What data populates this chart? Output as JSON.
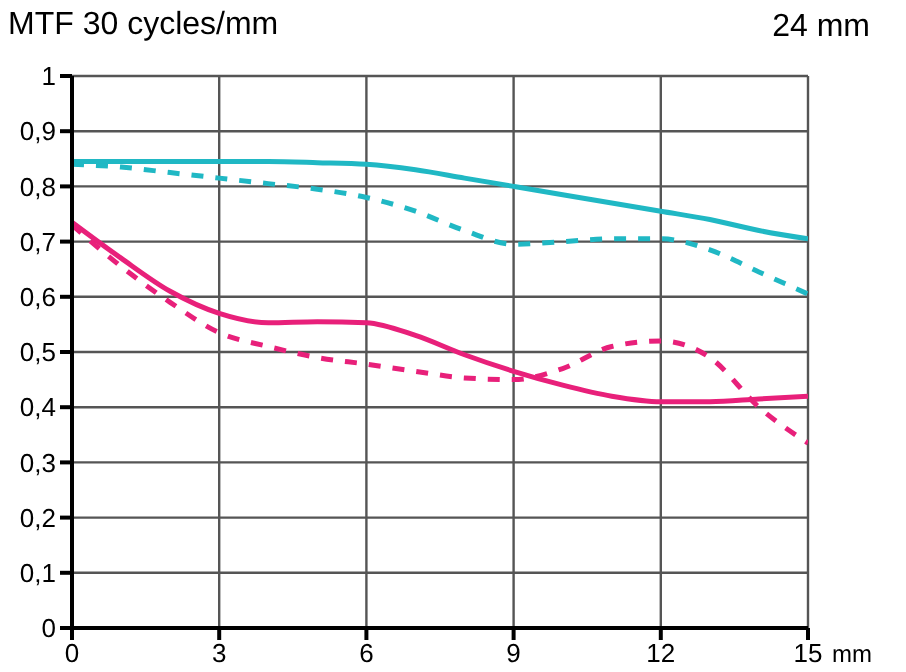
{
  "chart_data": {
    "type": "line",
    "title": "MTF 30 cycles/mm",
    "subtitle": "24 mm",
    "xlabel": "mm",
    "x": [
      0,
      1,
      2,
      3,
      4,
      5,
      6,
      7,
      8,
      9,
      10,
      11,
      12,
      13,
      14,
      15
    ],
    "series": [
      {
        "color": "#20b8c4",
        "line_style": "solid",
        "values": [
          0.845,
          0.845,
          0.845,
          0.845,
          0.845,
          0.843,
          0.84,
          0.83,
          0.815,
          0.8,
          0.785,
          0.77,
          0.755,
          0.74,
          0.72,
          0.705
        ]
      },
      {
        "color": "#20b8c4",
        "line_style": "dashed",
        "values": [
          0.84,
          0.835,
          0.825,
          0.815,
          0.805,
          0.795,
          0.78,
          0.755,
          0.72,
          0.695,
          0.7,
          0.705,
          0.705,
          0.685,
          0.645,
          0.605
        ]
      },
      {
        "color": "#e8207a",
        "line_style": "solid",
        "values": [
          0.735,
          0.67,
          0.61,
          0.57,
          0.553,
          0.555,
          0.553,
          0.53,
          0.495,
          0.465,
          0.44,
          0.42,
          0.41,
          0.41,
          0.415,
          0.42
        ]
      },
      {
        "color": "#e8207a",
        "line_style": "dashed",
        "values": [
          0.73,
          0.655,
          0.59,
          0.535,
          0.51,
          0.49,
          0.478,
          0.465,
          0.453,
          0.45,
          0.47,
          0.51,
          0.52,
          0.49,
          0.4,
          0.335
        ]
      }
    ],
    "xlim": [
      0,
      15
    ],
    "xticks": [
      0,
      3,
      6,
      9,
      12,
      15
    ],
    "ylim": [
      0,
      1
    ],
    "yticks": [
      0,
      {
        "value": 0.1,
        "label": "0,1"
      },
      {
        "value": 0.2,
        "label": "0,2"
      },
      {
        "value": 0.3,
        "label": "0,3"
      },
      {
        "value": 0.4,
        "label": "0,4"
      },
      {
        "value": 0.5,
        "label": "0,5"
      },
      {
        "value": 0.6,
        "label": "0,6"
      },
      {
        "value": 0.7,
        "label": "0,7"
      },
      {
        "value": 0.8,
        "label": "0,8"
      },
      {
        "value": 0.9,
        "label": "0,9"
      },
      1
    ],
    "grid": true,
    "marker": "none",
    "legend": false
  }
}
